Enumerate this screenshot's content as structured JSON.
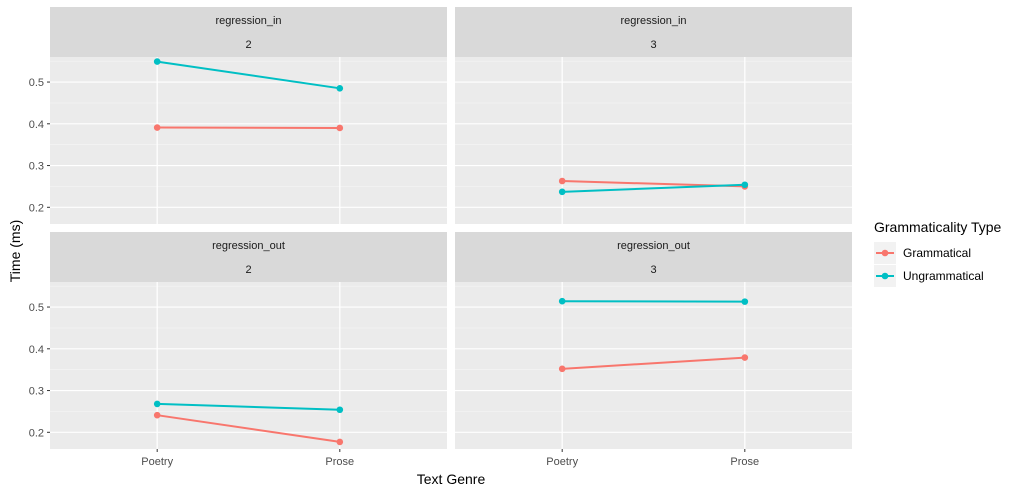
{
  "chart_data": {
    "type": "line",
    "xlabel": "Text Genre",
    "ylabel": "Time (ms)",
    "categories": [
      "Poetry",
      "Prose"
    ],
    "y_ticks": [
      0.2,
      0.3,
      0.4,
      0.5
    ],
    "ylim": [
      0.16,
      0.56
    ],
    "grid": true,
    "legend": {
      "title": "Grammaticality Type",
      "placement": "right",
      "items": [
        {
          "label": "Grammatical",
          "color": "#F8766D"
        },
        {
          "label": "Ungrammatical",
          "color": "#00BFC4"
        }
      ]
    },
    "facet_rows": [
      "regression_in",
      "regression_out"
    ],
    "facet_cols": [
      "2",
      "3"
    ],
    "panels": [
      {
        "row": "regression_in",
        "col": "2",
        "series": [
          {
            "name": "Grammatical",
            "values": [
              0.391,
              0.39
            ]
          },
          {
            "name": "Ungrammatical",
            "values": [
              0.549,
              0.485
            ]
          }
        ]
      },
      {
        "row": "regression_in",
        "col": "3",
        "series": [
          {
            "name": "Grammatical",
            "values": [
              0.263,
              0.25
            ]
          },
          {
            "name": "Ungrammatical",
            "values": [
              0.237,
              0.254
            ]
          }
        ]
      },
      {
        "row": "regression_out",
        "col": "2",
        "series": [
          {
            "name": "Grammatical",
            "values": [
              0.241,
              0.177
            ]
          },
          {
            "name": "Ungrammatical",
            "values": [
              0.268,
              0.254
            ]
          }
        ]
      },
      {
        "row": "regression_out",
        "col": "3",
        "series": [
          {
            "name": "Grammatical",
            "values": [
              0.352,
              0.379
            ]
          },
          {
            "name": "Ungrammatical",
            "values": [
              0.514,
              0.513
            ]
          }
        ]
      }
    ]
  }
}
